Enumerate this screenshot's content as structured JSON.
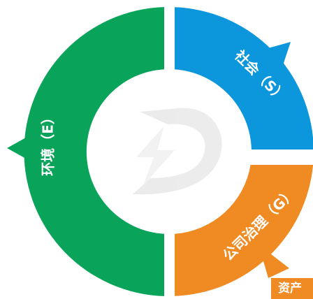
{
  "segments": [
    {
      "label": "社会（S）"
    },
    {
      "label": "环境（E）"
    },
    {
      "label": "公司治理（G）"
    }
  ],
  "tag": "资产"
}
